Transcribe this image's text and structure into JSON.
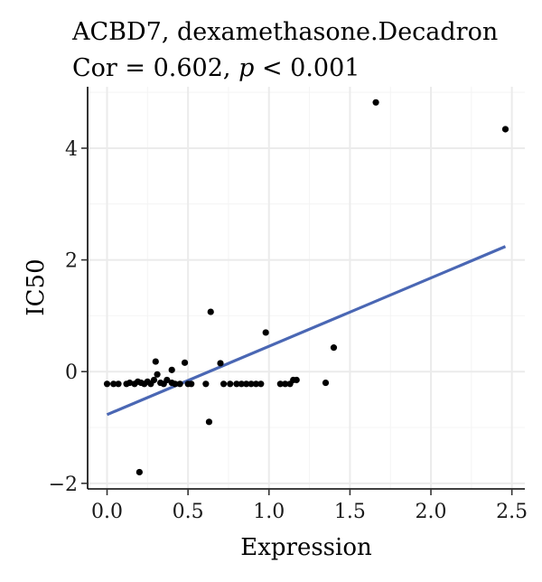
{
  "chart_data": {
    "type": "scatter",
    "title": "ACBD7, dexamethasone.Decadron",
    "subtitle_prefix": "Cor = 0.602, ",
    "subtitle_p": "p",
    "subtitle_suffix": " < 0.001",
    "xlabel": "Expression",
    "ylabel": "IC50",
    "xlim": [
      -0.12,
      2.58
    ],
    "ylim": [
      -2.1,
      5.1
    ],
    "x_ticks": [
      0.0,
      0.5,
      1.0,
      1.5,
      2.0,
      2.5
    ],
    "x_tick_labels": [
      "0.0",
      "0.5",
      "1.0",
      "1.5",
      "2.0",
      "2.5"
    ],
    "y_ticks": [
      -2,
      0,
      2,
      4
    ],
    "y_tick_labels": [
      "−2",
      "0",
      "2",
      "4"
    ],
    "grid": true,
    "point_color": "#000000",
    "line_color": "#4a67b4",
    "points": [
      {
        "x": 0.0,
        "y": -0.22
      },
      {
        "x": 0.04,
        "y": -0.22
      },
      {
        "x": 0.07,
        "y": -0.22
      },
      {
        "x": 0.12,
        "y": -0.22
      },
      {
        "x": 0.14,
        "y": -0.2
      },
      {
        "x": 0.17,
        "y": -0.22
      },
      {
        "x": 0.19,
        "y": -0.18
      },
      {
        "x": 0.21,
        "y": -0.2
      },
      {
        "x": 0.23,
        "y": -0.22
      },
      {
        "x": 0.25,
        "y": -0.18
      },
      {
        "x": 0.27,
        "y": -0.22
      },
      {
        "x": 0.29,
        "y": -0.15
      },
      {
        "x": 0.3,
        "y": 0.18
      },
      {
        "x": 0.31,
        "y": -0.05
      },
      {
        "x": 0.33,
        "y": -0.2
      },
      {
        "x": 0.35,
        "y": -0.22
      },
      {
        "x": 0.37,
        "y": -0.15
      },
      {
        "x": 0.4,
        "y": 0.03
      },
      {
        "x": 0.4,
        "y": -0.2
      },
      {
        "x": 0.42,
        "y": -0.22
      },
      {
        "x": 0.45,
        "y": -0.22
      },
      {
        "x": 0.48,
        "y": 0.16
      },
      {
        "x": 0.5,
        "y": -0.22
      },
      {
        "x": 0.52,
        "y": -0.22
      },
      {
        "x": 0.61,
        "y": -0.22
      },
      {
        "x": 0.63,
        "y": -0.9
      },
      {
        "x": 0.64,
        "y": 1.07
      },
      {
        "x": 0.7,
        "y": 0.15
      },
      {
        "x": 0.72,
        "y": -0.22
      },
      {
        "x": 0.76,
        "y": -0.22
      },
      {
        "x": 0.8,
        "y": -0.22
      },
      {
        "x": 0.83,
        "y": -0.22
      },
      {
        "x": 0.86,
        "y": -0.22
      },
      {
        "x": 0.89,
        "y": -0.22
      },
      {
        "x": 0.92,
        "y": -0.22
      },
      {
        "x": 0.95,
        "y": -0.22
      },
      {
        "x": 0.98,
        "y": 0.7
      },
      {
        "x": 1.07,
        "y": -0.22
      },
      {
        "x": 1.1,
        "y": -0.22
      },
      {
        "x": 1.13,
        "y": -0.22
      },
      {
        "x": 1.15,
        "y": -0.15
      },
      {
        "x": 1.17,
        "y": -0.15
      },
      {
        "x": 1.35,
        "y": -0.2
      },
      {
        "x": 1.4,
        "y": 0.43
      },
      {
        "x": 0.2,
        "y": -1.8
      },
      {
        "x": 1.66,
        "y": 4.82
      },
      {
        "x": 2.46,
        "y": 4.34
      }
    ],
    "fit_line": {
      "x": [
        0.0,
        2.46
      ],
      "y": [
        -0.77,
        2.24
      ]
    }
  }
}
